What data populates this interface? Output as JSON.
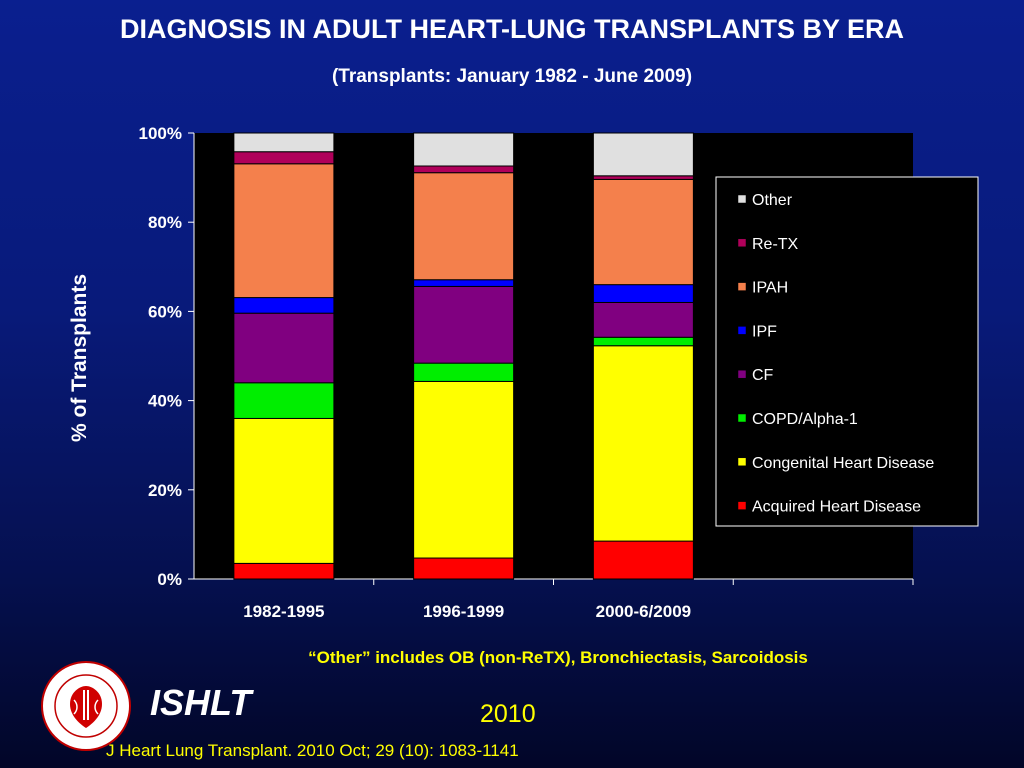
{
  "header": {
    "title": "DIAGNOSIS IN ADULT HEART-LUNG TRANSPLANTS BY ERA",
    "subtitle": "(Transplants: January 1982 - June 2009)"
  },
  "footer": {
    "note": "“Other” includes OB (non-ReTX), Bronchiectasis, Sarcoidosis",
    "org": "ISHLT",
    "year": "2010",
    "citation": "J Heart Lung Transplant. 2010 Oct; 29 (10): 1083-1141",
    "logo_text": "INTERNATIONAL SOCIETY FOR HEART & LUNG TRANSPLANTATION"
  },
  "chart_data": {
    "type": "bar",
    "stacked": true,
    "percent": true,
    "ylabel": "% of Transplants",
    "xlabel": "",
    "ylim": [
      0,
      100
    ],
    "yticks": [
      "0%",
      "20%",
      "40%",
      "60%",
      "80%",
      "100%"
    ],
    "categories": [
      "1982-1995",
      "1996-1999",
      "2000-6/2009"
    ],
    "legend_position": "right",
    "series": [
      {
        "name": "Acquired Heart Disease",
        "color": "#ff0000",
        "values": [
          3.5,
          4.7,
          8.5
        ]
      },
      {
        "name": "Congenital Heart Disease",
        "color": "#ffff00",
        "values": [
          32.5,
          39.6,
          43.8
        ]
      },
      {
        "name": "COPD/Alpha-1",
        "color": "#00ee00",
        "values": [
          8.0,
          4.1,
          1.9
        ]
      },
      {
        "name": "CF",
        "color": "#800080",
        "values": [
          15.6,
          17.2,
          7.8
        ]
      },
      {
        "name": "IPF",
        "color": "#0000ff",
        "values": [
          3.5,
          1.5,
          4.0
        ]
      },
      {
        "name": "IPAH",
        "color": "#f4804c",
        "values": [
          30.0,
          24.0,
          23.6
        ]
      },
      {
        "name": "Re-TX",
        "color": "#b0005a",
        "values": [
          2.7,
          1.5,
          0.8
        ]
      },
      {
        "name": "Other",
        "color": "#e0e0e0",
        "values": [
          4.2,
          7.4,
          9.6
        ]
      }
    ],
    "legend_order": [
      "Other",
      "Re-TX",
      "IPAH",
      "IPF",
      "CF",
      "COPD/Alpha-1",
      "Congenital Heart Disease",
      "Acquired Heart Disease"
    ]
  }
}
